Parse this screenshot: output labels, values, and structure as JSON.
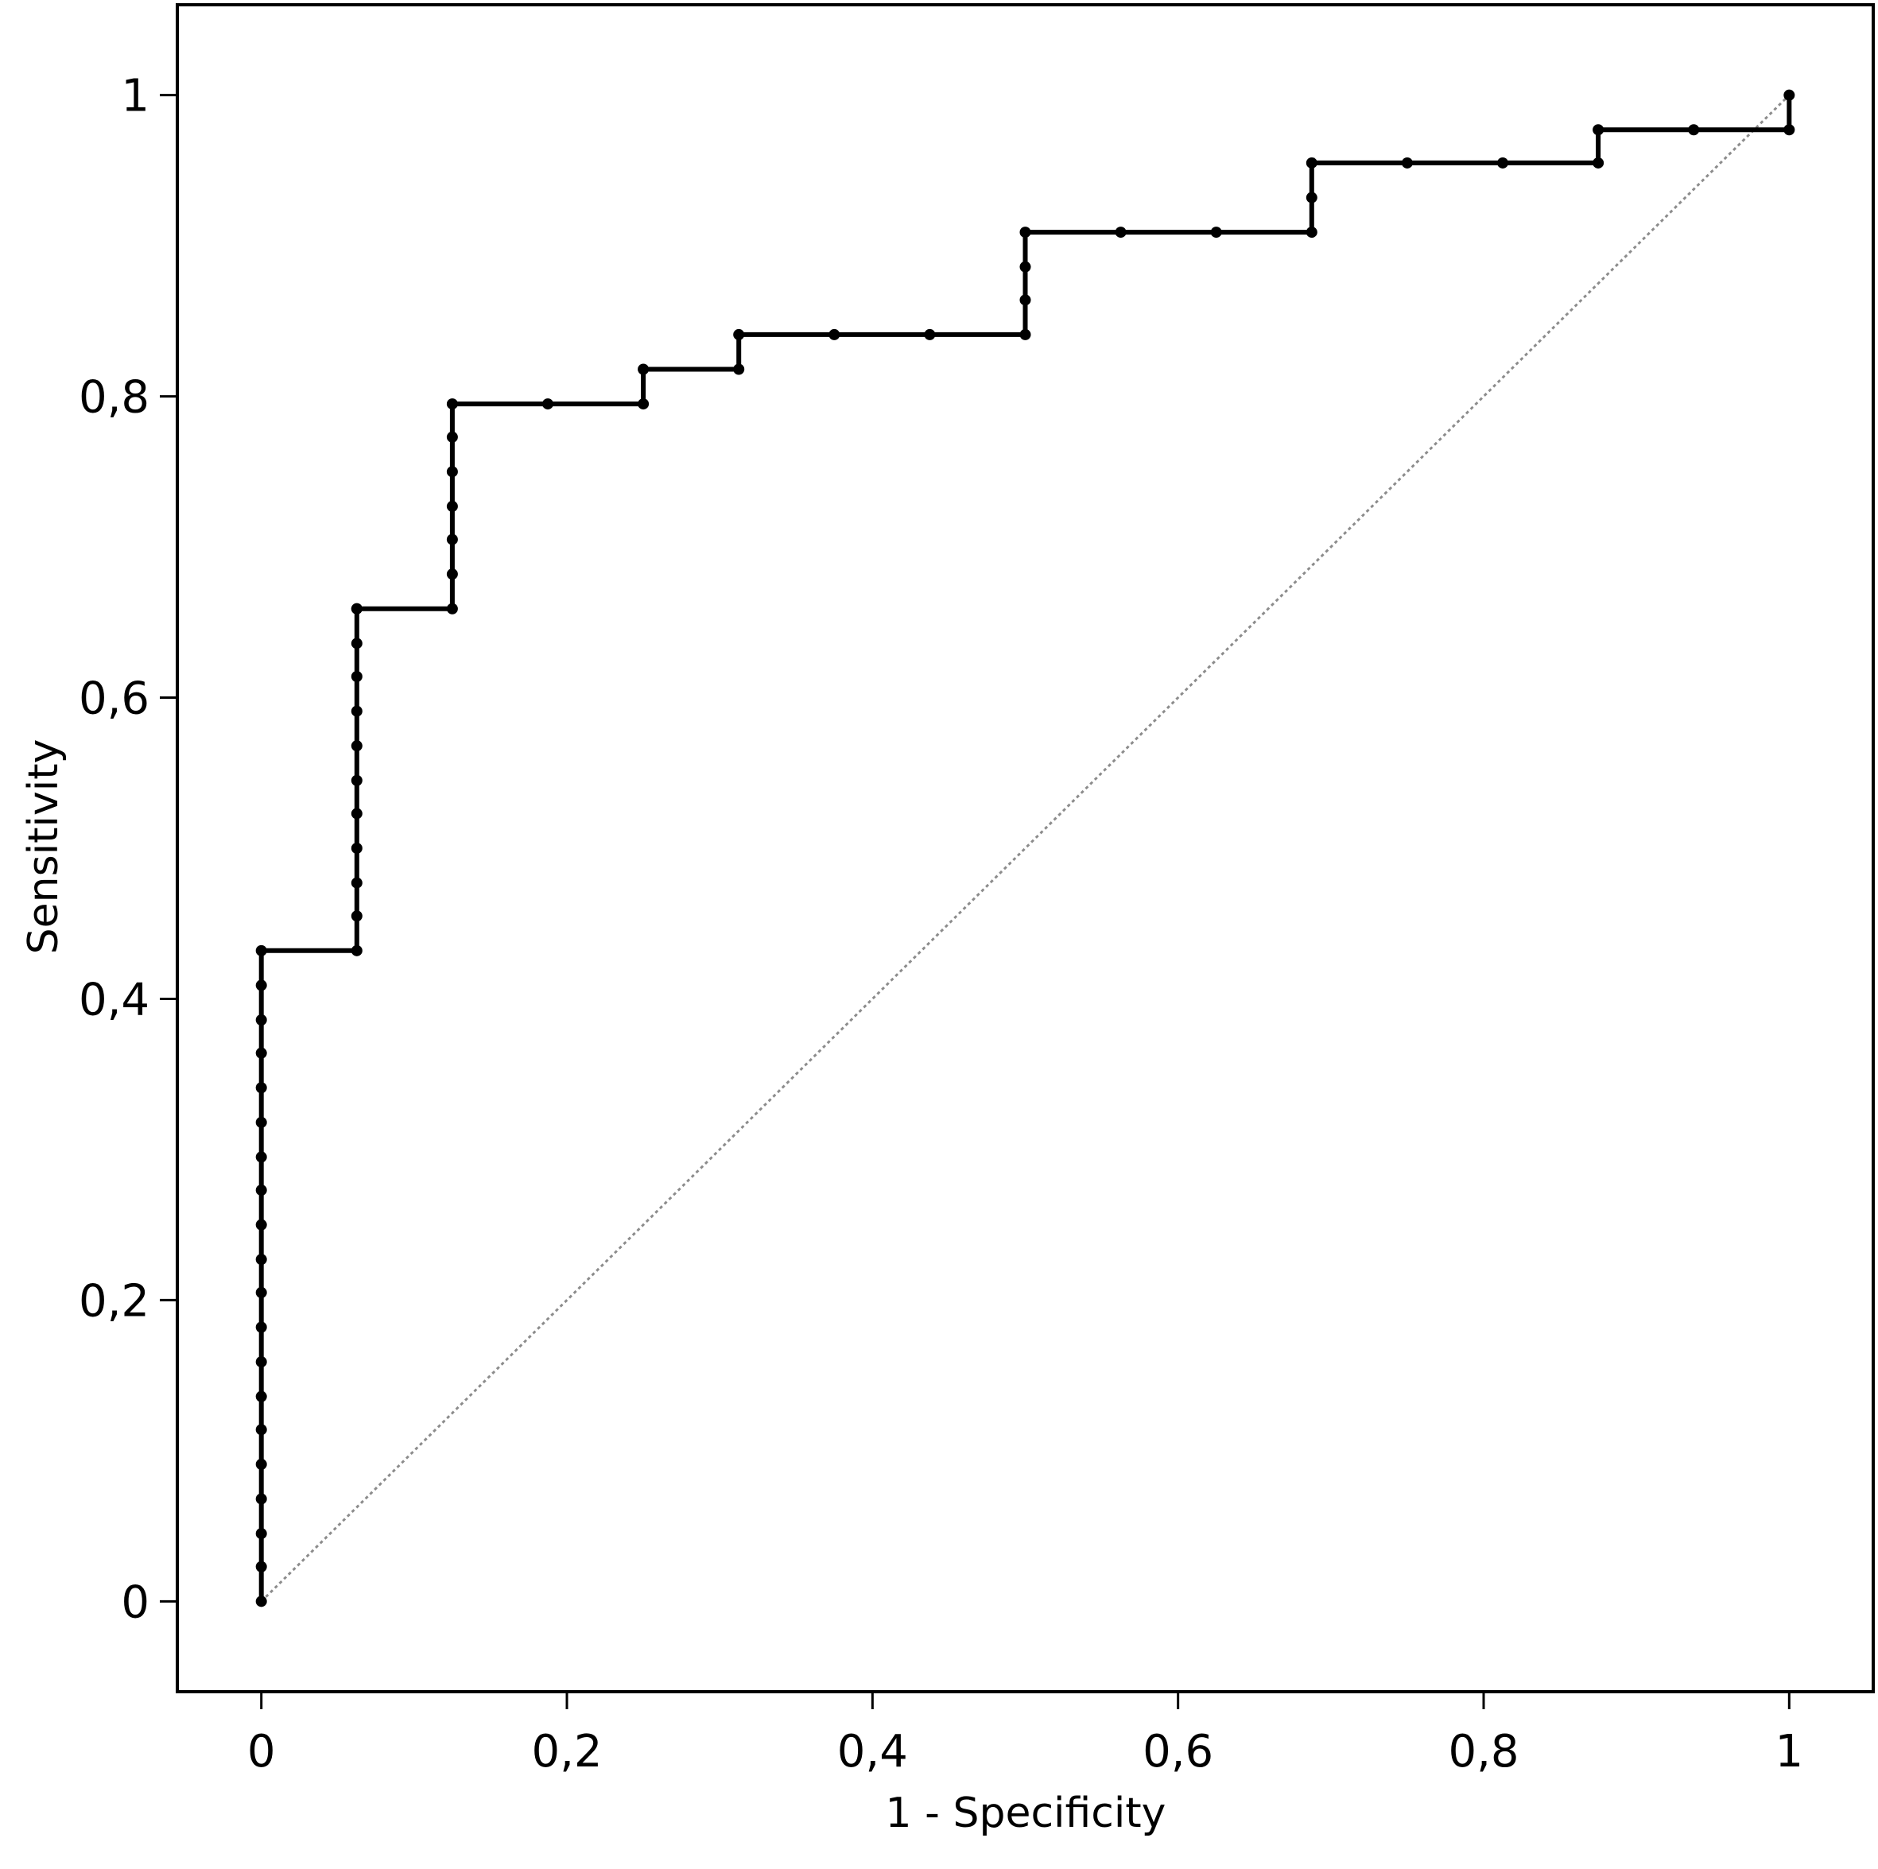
{
  "chart_data": {
    "type": "line",
    "title": "",
    "xlabel": "1 - Specificity",
    "ylabel": "Sensitivity",
    "xlim": [
      -0.055,
      1.055
    ],
    "ylim": [
      -0.06,
      1.06
    ],
    "xticks": [
      0,
      0.2,
      0.4,
      0.6,
      0.8,
      1
    ],
    "yticks": [
      0,
      0.2,
      0.4,
      0.6,
      0.8,
      1
    ],
    "xtick_labels": [
      "0",
      "0,2",
      "0,4",
      "0,6",
      "0,8",
      "1"
    ],
    "ytick_labels": [
      "0",
      "0,2",
      "0,4",
      "0,6",
      "0,8",
      "1"
    ],
    "grid": false,
    "legend": "none",
    "series": [
      {
        "x": [
          0,
          0,
          0,
          0,
          0,
          0,
          0,
          0,
          0,
          0,
          0,
          0,
          0,
          0,
          0,
          0,
          0,
          0,
          0,
          0,
          0.0625,
          0.0625,
          0.0625,
          0.0625,
          0.0625,
          0.0625,
          0.0625,
          0.0625,
          0.0625,
          0.0625,
          0.0625,
          0.0625,
          0.125,
          0.125,
          0.125,
          0.125,
          0.125,
          0.125,
          0.125,
          0.1875,
          0.25,
          0.25,
          0.3125,
          0.3125,
          0.375,
          0.4375,
          0.5,
          0.5,
          0.5,
          0.5,
          0.5625,
          0.625,
          0.6875,
          0.6875,
          0.6875,
          0.75,
          0.8125,
          0.875,
          0.875,
          0.9375,
          1,
          1
        ],
        "y": [
          0,
          0.023,
          0.045,
          0.068,
          0.091,
          0.114,
          0.136,
          0.159,
          0.182,
          0.205,
          0.227,
          0.25,
          0.273,
          0.295,
          0.318,
          0.341,
          0.364,
          0.386,
          0.409,
          0.432,
          0.432,
          0.455,
          0.477,
          0.5,
          0.523,
          0.545,
          0.568,
          0.591,
          0.614,
          0.636,
          0.659,
          0.659,
          0.659,
          0.682,
          0.705,
          0.727,
          0.75,
          0.773,
          0.795,
          0.795,
          0.795,
          0.818,
          0.818,
          0.841,
          0.841,
          0.841,
          0.841,
          0.864,
          0.886,
          0.909,
          0.909,
          0.909,
          0.909,
          0.932,
          0.955,
          0.955,
          0.955,
          0.955,
          0.977,
          0.977,
          0.977,
          1
        ],
        "color": "#000000"
      },
      {
        "x": [
          0,
          1
        ],
        "y": [
          0,
          1
        ],
        "color": "#8c8c8c",
        "style": "dotted"
      }
    ]
  }
}
